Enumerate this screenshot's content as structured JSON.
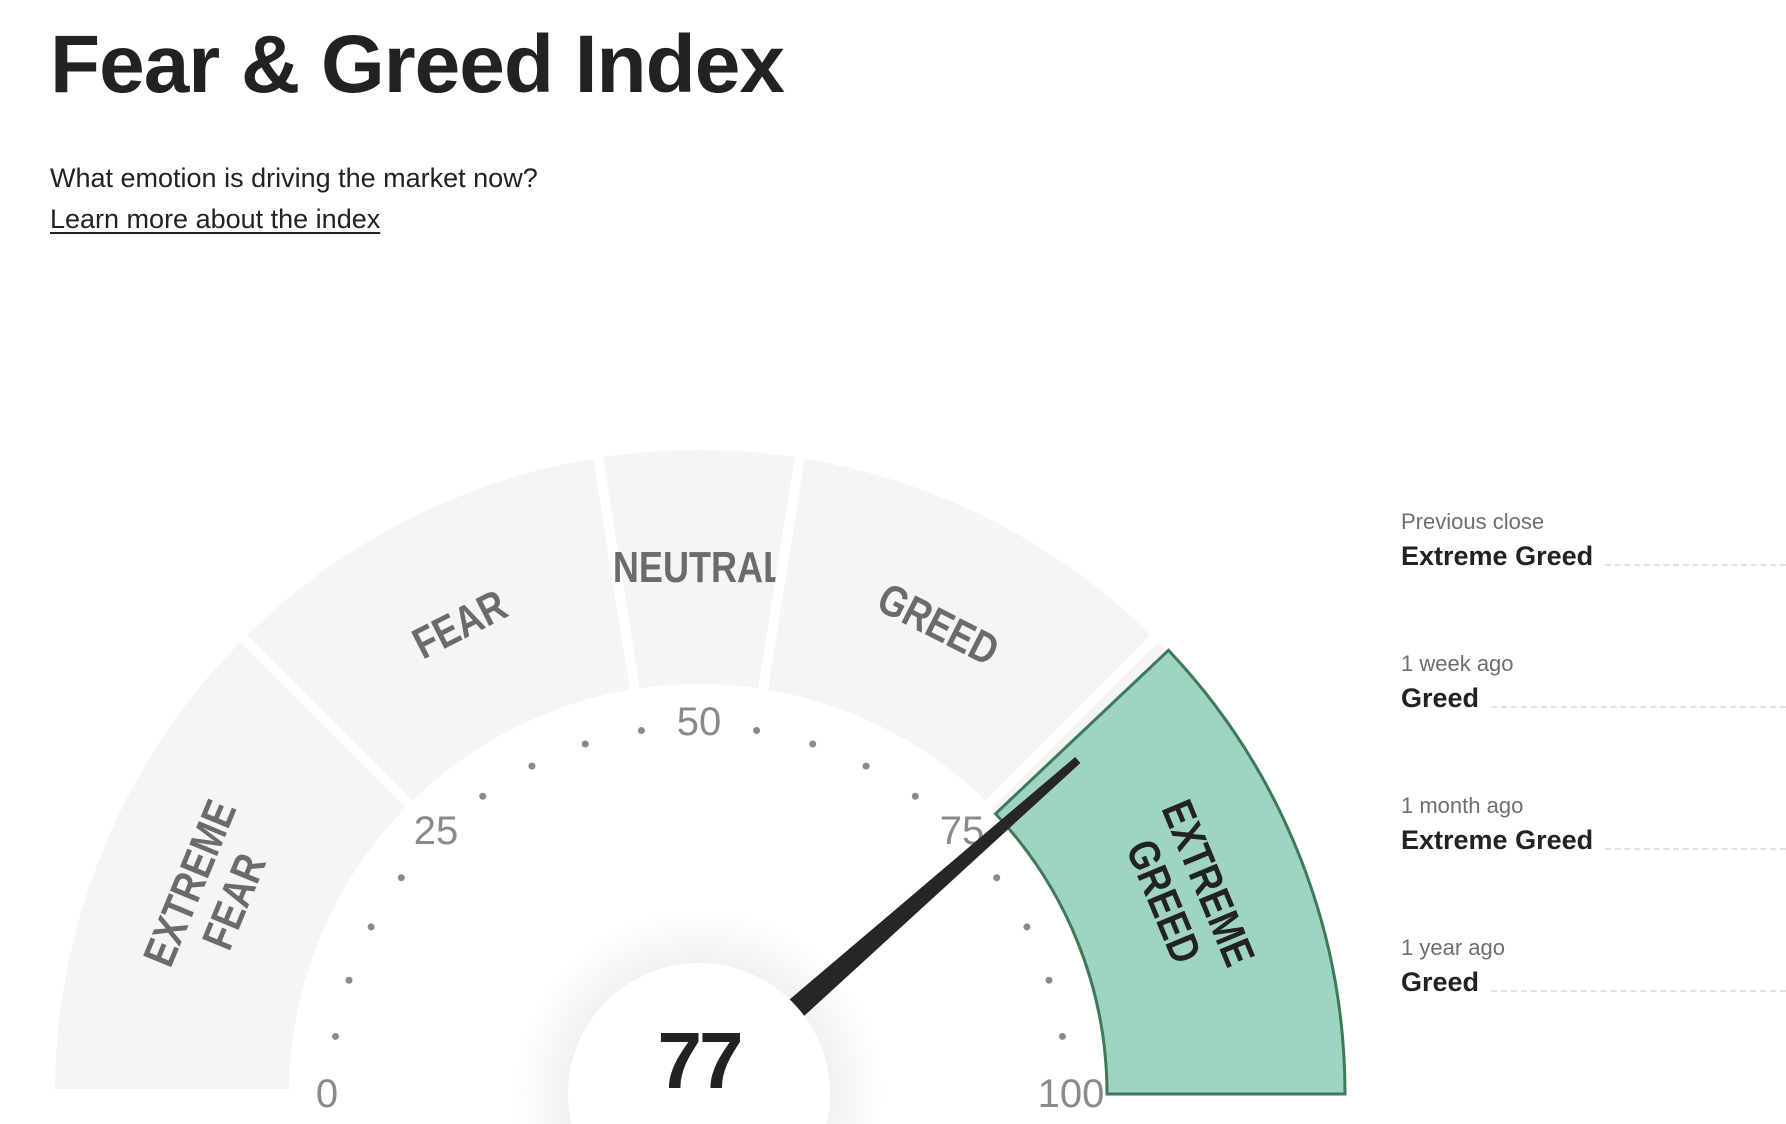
{
  "header": {
    "title": "Fear & Greed Index",
    "subtitle": "What emotion is driving the market now?",
    "learn_more_link": "Learn more about the index"
  },
  "chart_data": {
    "type": "gauge",
    "value": 77,
    "value_label": "77",
    "range": [
      0,
      100
    ],
    "tick_labels": [
      "0",
      "25",
      "50",
      "75",
      "100"
    ],
    "minor_tick_step": 5,
    "segments": [
      {
        "label": "EXTREME FEAR",
        "lines": [
          "EXTREME",
          "FEAR"
        ],
        "from": 0,
        "to": 25
      },
      {
        "label": "FEAR",
        "lines": [
          "FEAR"
        ],
        "from": 25,
        "to": 45
      },
      {
        "label": "NEUTRAL",
        "lines": [
          "NEUTRAL"
        ],
        "from": 45,
        "to": 55
      },
      {
        "label": "GREED",
        "lines": [
          "GREED"
        ],
        "from": 55,
        "to": 75
      },
      {
        "label": "EXTREME GREED",
        "lines": [
          "EXTREME",
          "GREED"
        ],
        "from": 75,
        "to": 100
      }
    ],
    "active_segment": "EXTREME GREED",
    "colors": {
      "segment": "#f5f5f5",
      "active_fill": "#9fd4c3",
      "active_stroke": "#3e7a57",
      "segment_text": "#6b6b6b",
      "active_text": "#222222",
      "needle": "#262626",
      "tick": "#8a8a8a"
    }
  },
  "history": [
    {
      "label": "Previous close",
      "value": "Extreme Greed"
    },
    {
      "label": "1 week ago",
      "value": "Greed"
    },
    {
      "label": "1 month ago",
      "value": "Extreme Greed"
    },
    {
      "label": "1 year ago",
      "value": "Greed"
    }
  ]
}
